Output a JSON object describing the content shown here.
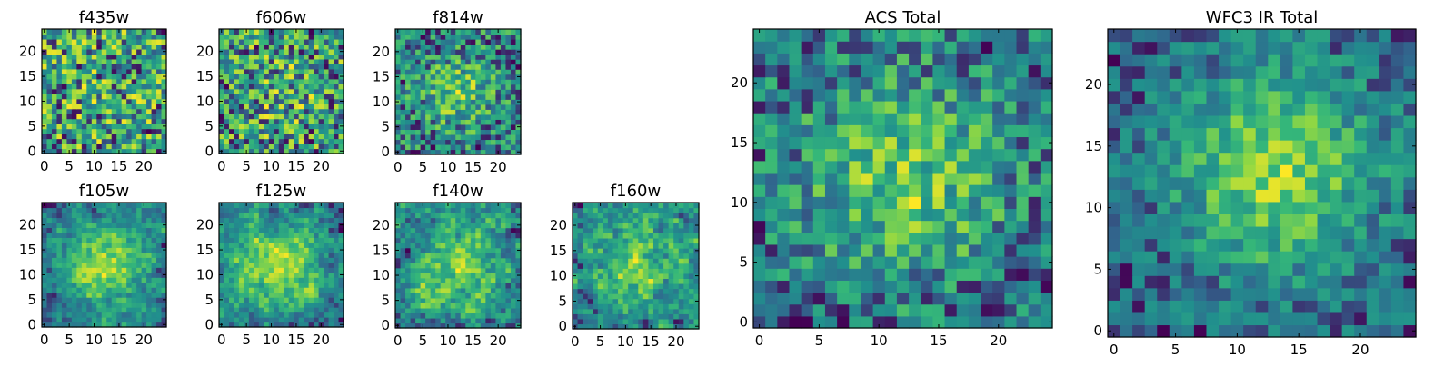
{
  "colors": {
    "cmap": [
      "#440154",
      "#31688e",
      "#21908d",
      "#35b779",
      "#8fd744",
      "#fde725"
    ]
  },
  "chart_data": [
    {
      "type": "heatmap",
      "title": "f435w",
      "grid_size": 25,
      "xticks": [
        0,
        5,
        10,
        15,
        20
      ],
      "yticks": [
        0,
        5,
        10,
        15,
        20
      ],
      "xlim": [
        0,
        25
      ],
      "ylim": [
        0,
        25
      ],
      "grid": false,
      "legend": "none",
      "seed": 11,
      "peak": [
        12,
        12
      ],
      "peak_strength": 0.05,
      "sigma": 7,
      "noise": 0.95,
      "smooth": false
    },
    {
      "type": "heatmap",
      "title": "f606w",
      "grid_size": 25,
      "xticks": [
        0,
        5,
        10,
        15,
        20
      ],
      "yticks": [
        0,
        5,
        10,
        15,
        20
      ],
      "xlim": [
        0,
        25
      ],
      "ylim": [
        0,
        25
      ],
      "grid": false,
      "legend": "none",
      "seed": 23,
      "peak": [
        12,
        12
      ],
      "peak_strength": 0.12,
      "sigma": 6,
      "noise": 0.9,
      "smooth": false
    },
    {
      "type": "heatmap",
      "title": "f814w",
      "grid_size": 25,
      "xticks": [
        0,
        5,
        10,
        15,
        20
      ],
      "yticks": [
        0,
        5,
        10,
        15,
        20
      ],
      "xlim": [
        0,
        25
      ],
      "ylim": [
        0,
        25
      ],
      "grid": false,
      "legend": "none",
      "seed": 37,
      "peak": [
        12,
        12
      ],
      "peak_strength": 0.35,
      "sigma": 5,
      "noise": 0.75,
      "smooth": false
    },
    {
      "type": "heatmap",
      "title": "f105w",
      "grid_size": 25,
      "xticks": [
        0,
        5,
        10,
        15,
        20
      ],
      "yticks": [
        0,
        5,
        10,
        15,
        20
      ],
      "xlim": [
        0,
        25
      ],
      "ylim": [
        0,
        25
      ],
      "grid": false,
      "legend": "none",
      "seed": 41,
      "peak": [
        12,
        12
      ],
      "peak_strength": 0.5,
      "sigma": 6,
      "noise": 0.6,
      "smooth": true
    },
    {
      "type": "heatmap",
      "title": "f125w",
      "grid_size": 25,
      "xticks": [
        0,
        5,
        10,
        15,
        20
      ],
      "yticks": [
        0,
        5,
        10,
        15,
        20
      ],
      "xlim": [
        0,
        25
      ],
      "ylim": [
        0,
        25
      ],
      "grid": false,
      "legend": "none",
      "seed": 53,
      "peak": [
        12,
        12
      ],
      "peak_strength": 0.4,
      "sigma": 6,
      "noise": 0.65,
      "smooth": true
    },
    {
      "type": "heatmap",
      "title": "f140w",
      "grid_size": 25,
      "xticks": [
        0,
        5,
        10,
        15,
        20
      ],
      "yticks": [
        0,
        5,
        10,
        15,
        20
      ],
      "xlim": [
        0,
        25
      ],
      "ylim": [
        0,
        25
      ],
      "grid": false,
      "legend": "none",
      "seed": 67,
      "peak": [
        12,
        12
      ],
      "peak_strength": 0.3,
      "sigma": 6,
      "noise": 0.7,
      "smooth": true
    },
    {
      "type": "heatmap",
      "title": "f160w",
      "grid_size": 25,
      "xticks": [
        0,
        5,
        10,
        15,
        20
      ],
      "yticks": [
        0,
        5,
        10,
        15,
        20
      ],
      "xlim": [
        0,
        25
      ],
      "ylim": [
        0,
        25
      ],
      "grid": false,
      "legend": "none",
      "seed": 79,
      "peak": [
        12,
        12
      ],
      "peak_strength": 0.3,
      "sigma": 6,
      "noise": 0.7,
      "smooth": true
    },
    {
      "type": "heatmap",
      "title": "ACS Total",
      "grid_size": 25,
      "xticks": [
        0,
        5,
        10,
        15,
        20
      ],
      "yticks": [
        0,
        5,
        10,
        15,
        20
      ],
      "xlim": [
        0,
        25
      ],
      "ylim": [
        0,
        25
      ],
      "grid": false,
      "legend": "none",
      "seed": 91,
      "peak": [
        12,
        12
      ],
      "peak_strength": 0.4,
      "sigma": 6,
      "noise": 0.55,
      "smooth": false
    },
    {
      "type": "heatmap",
      "title": "WFC3 IR Total",
      "grid_size": 25,
      "xticks": [
        0,
        5,
        10,
        15,
        20
      ],
      "yticks": [
        0,
        5,
        10,
        15,
        20
      ],
      "xlim": [
        0,
        25
      ],
      "ylim": [
        0,
        25
      ],
      "grid": false,
      "legend": "none",
      "seed": 103,
      "peak": [
        13,
        13
      ],
      "peak_strength": 0.6,
      "sigma": 6,
      "noise": 0.45,
      "smooth": false
    }
  ]
}
